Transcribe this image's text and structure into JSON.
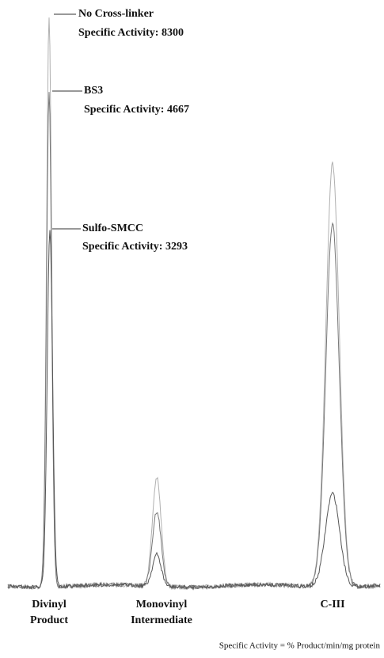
{
  "annotations": [
    {
      "name": "No Cross-linker",
      "activity_label": "Specific Activity:",
      "activity": 8300
    },
    {
      "name": "BS3",
      "activity_label": "Specific Activity:",
      "activity": 4667
    },
    {
      "name": "Sulfo-SMCC",
      "activity_label": "Specific Activity:",
      "activity": 3293
    }
  ],
  "peaks": [
    {
      "lines": [
        "Divinyl",
        "Product"
      ]
    },
    {
      "lines": [
        "Monovinyl",
        "Intermediate"
      ]
    },
    {
      "lines": [
        "C-III"
      ]
    }
  ],
  "footnote": "Specific Activity = % Product/min/mg protein"
}
